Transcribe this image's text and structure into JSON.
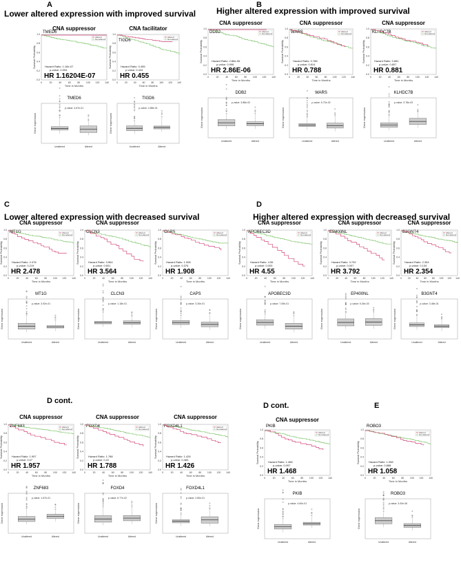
{
  "axis_text": {
    "km_ylabel": "Survival Probability",
    "km_xlabel": "Time in Months",
    "box_ylabel": "Gene expression",
    "legend_altered": "Altered",
    "legend_not_altered": "Not altered",
    "hazard_prefix": "Hazard Ratio:",
    "pvalue_prefix": "p-value:",
    "hr_prefix": "HR",
    "box_x_unaltered": "Unaltered",
    "box_x_altered": "Altered",
    "box_p_prefix": "p-value:"
  },
  "colors": {
    "altered": "#d2477a",
    "not_altered": "#7ec46a",
    "box_fill": "#cccccc"
  },
  "sections": [
    {
      "letter": "A",
      "title": "Lower altered expression with improved survival"
    },
    {
      "letter": "B",
      "title": "Higher altered expression with improved survival"
    },
    {
      "letter": "C",
      "title": "Lower altered expression with decreased survival"
    },
    {
      "letter": "D",
      "title": "Higher altered expression with decreased survival"
    },
    {
      "letter": "D cont.",
      "title": ""
    },
    {
      "letter": "D cont.",
      "title": ""
    },
    {
      "letter": "E",
      "title": ""
    }
  ],
  "chart_data": [
    {
      "type": "km_and_box",
      "role": "CNA suppressor",
      "gene": "TMED6",
      "hazard": "1.16e-07",
      "pvalue": "0.994",
      "hr": "1.16204E-07",
      "box_p": "4.67e-01",
      "km_scale": "short",
      "km_end": {
        "altered": 1.0,
        "not_altered": 0.7
      }
    },
    {
      "type": "km_and_box",
      "role": "CNA facilitator",
      "gene": "TIGD6",
      "hazard": "0.455",
      "pvalue": "0.443",
      "hr": "0.455",
      "box_p": "4.58e-01",
      "km_scale": "long",
      "km_end": {
        "altered": 0.85,
        "not_altered": 0.55
      }
    },
    {
      "type": "km_and_box",
      "role": "CNA suppressor",
      "gene": "DDB2",
      "hazard": "2.86e-06",
      "pvalue": "0.996",
      "hr": "2.86E-06",
      "box_p": "3.88e-02",
      "km_scale": "long",
      "km_end": {
        "altered": 1.0,
        "not_altered": 0.6
      }
    },
    {
      "type": "km_and_box",
      "role": "CNA suppressor",
      "gene": "WARS",
      "hazard": "0.788",
      "pvalue": "0.814",
      "hr": "0.788",
      "box_p": "5.72e-02",
      "km_scale": "long",
      "km_end": {
        "altered": 0.62,
        "not_altered": 0.58
      }
    },
    {
      "type": "km_and_box",
      "role": "CNA suppressor",
      "gene": "KLHDC7B",
      "hazard": "0.881",
      "pvalue": "0.807",
      "hr": "0.881",
      "box_p": "3.78e-03",
      "km_scale": "long",
      "km_end": {
        "altered": 0.62,
        "not_altered": 0.58
      }
    },
    {
      "type": "km_and_box",
      "role": "CNA suppressor",
      "gene": "MT1G",
      "hazard": "2.478",
      "pvalue": "0.219",
      "hr": "2.478",
      "box_p": "3.92e-01",
      "km_scale": "long",
      "km_end": {
        "altered": 0.45,
        "not_altered": 0.7
      }
    },
    {
      "type": "km_and_box",
      "role": "CNA suppressor",
      "gene": "CLCN3",
      "hazard": "3.564",
      "pvalue": "0.601",
      "hr": "3.564",
      "box_p": "1.18e-01",
      "km_scale": "long",
      "km_end": {
        "altered": 0.3,
        "not_altered": 0.6
      }
    },
    {
      "type": "km_and_box",
      "role": "",
      "gene": "CAPS",
      "hazard": "1.908",
      "pvalue": "0.376",
      "hr": "1.908",
      "box_p": "3.30e-01",
      "km_scale": "long",
      "km_end": {
        "altered": 0.55,
        "not_altered": 0.72
      }
    },
    {
      "type": "km_and_box",
      "role": "CNA suppressor",
      "gene": "APOBEC3D",
      "hazard": "4.55",
      "pvalue": "0.003",
      "hr": "4.55",
      "box_p": "7.05e-01",
      "km_scale": "long",
      "km_end": {
        "altered": 0.2,
        "not_altered": 0.7
      }
    },
    {
      "type": "km_and_box",
      "role": "CNA suppressor",
      "gene": "EP400NL",
      "hazard": "3.792",
      "pvalue": "0.007",
      "hr": "3.792",
      "box_p": "5.26e-03",
      "km_scale": "long",
      "km_end": {
        "altered": 0.25,
        "not_altered": 0.7
      }
    },
    {
      "type": "km_and_box",
      "role": "CNA suppressor",
      "gene": "B3GNT4",
      "hazard": "2.354",
      "pvalue": "0.134",
      "hr": "2.354",
      "box_p": "3.48e-01",
      "km_scale": "long",
      "km_end": {
        "altered": 0.45,
        "not_altered": 0.72
      }
    },
    {
      "type": "km_and_box",
      "role": "CNA suppressor",
      "gene": "ZNF683",
      "hazard": "1.957",
      "pvalue": "0.07",
      "hr": "1.957",
      "box_p": "1.67e-01",
      "km_scale": "long",
      "km_end": {
        "altered": 0.55,
        "not_altered": 0.75
      }
    },
    {
      "type": "km_and_box",
      "role": "CNA suppressor",
      "gene": "FOXD4",
      "hazard": "1.788",
      "pvalue": "0.22",
      "hr": "1.788",
      "box_p": "6.77e-02",
      "km_scale": "long",
      "km_end": {
        "altered": 0.5,
        "not_altered": 0.72
      }
    },
    {
      "type": "km_and_box",
      "role": "CNA suppressor",
      "gene": "FOXD4L1",
      "hazard": "1.426",
      "pvalue": "0.483",
      "hr": "1.426",
      "box_p": "2.80e-01",
      "km_scale": "long",
      "km_end": {
        "altered": 0.6,
        "not_altered": 0.72
      }
    },
    {
      "type": "km_and_box",
      "role": "CNA suppressor",
      "gene": "PKIB",
      "hazard": "1.468",
      "pvalue": "0.097",
      "hr": "1.468",
      "box_p": "4.60e-01",
      "km_scale": "long",
      "km_end": {
        "altered": 0.55,
        "not_altered": 0.7
      }
    },
    {
      "type": "km_and_box",
      "role": "",
      "gene": "ROBO3",
      "hazard": "1.058",
      "pvalue": "0.888",
      "hr": "1.058",
      "box_p": "3.00e-06",
      "km_scale": "long",
      "km_end": {
        "altered": 0.65,
        "not_altered": 0.68
      }
    }
  ]
}
